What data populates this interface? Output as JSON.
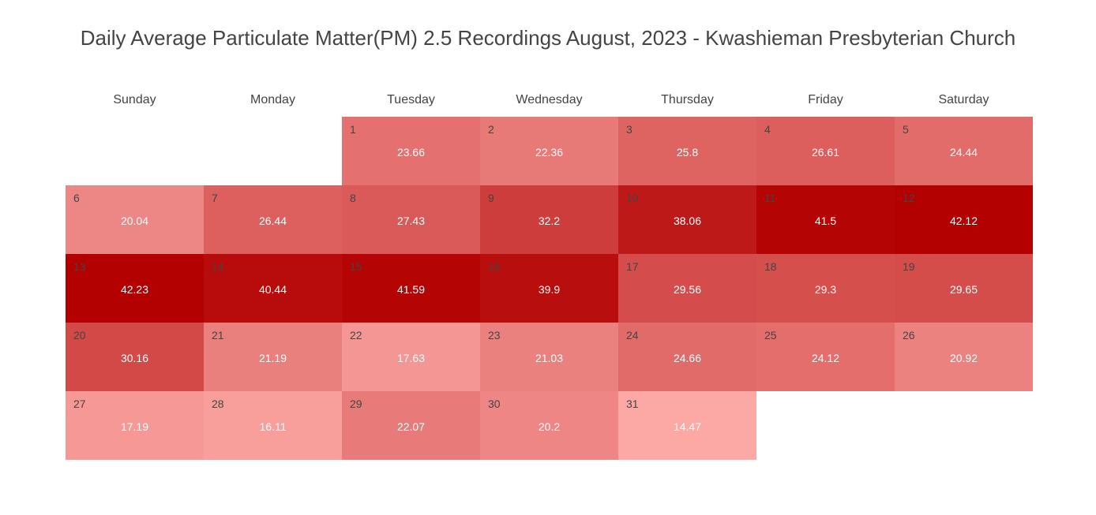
{
  "chart_data": {
    "type": "heatmap",
    "title": "Daily Average Particulate Matter(PM) 2.5 Recordings August, 2023 - Kwashieman Presbyterian Church",
    "weekdays": [
      "Sunday",
      "Monday",
      "Tuesday",
      "Wednesday",
      "Thursday",
      "Friday",
      "Saturday"
    ],
    "first_weekday_index": 2,
    "days": [
      1,
      2,
      3,
      4,
      5,
      6,
      7,
      8,
      9,
      10,
      11,
      12,
      13,
      14,
      15,
      16,
      17,
      18,
      19,
      20,
      21,
      22,
      23,
      24,
      25,
      26,
      27,
      28,
      29,
      30,
      31
    ],
    "values": [
      "23.66",
      "22.36",
      "25.8",
      "26.61",
      "24.44",
      "20.04",
      "26.44",
      "27.43",
      "32.2",
      "38.06",
      "41.5",
      "42.12",
      "42.23",
      "40.44",
      "41.59",
      "39.9",
      "29.56",
      "29.3",
      "29.65",
      "30.16",
      "21.19",
      "17.63",
      "21.03",
      "24.66",
      "24.12",
      "20.92",
      "17.19",
      "16.11",
      "22.07",
      "20.2",
      "14.47"
    ],
    "color_min": "#fca9a6",
    "color_max": "#b30000"
  }
}
